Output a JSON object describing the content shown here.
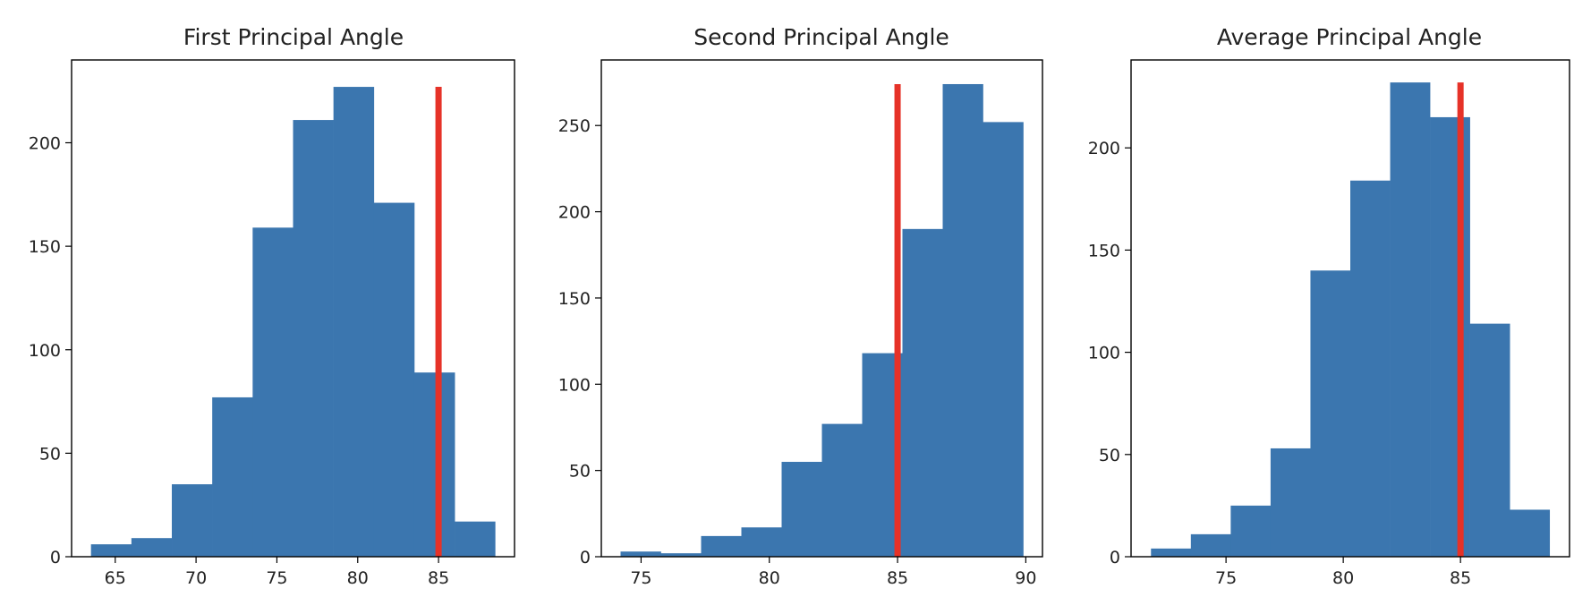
{
  "chart_data": [
    {
      "type": "bar",
      "title": "First Principal Angle",
      "xlabel": "",
      "ylabel": "",
      "bins": [
        {
          "x0": 63.5,
          "x1": 66.0,
          "count": 6
        },
        {
          "x0": 66.0,
          "x1": 68.5,
          "count": 9
        },
        {
          "x0": 68.5,
          "x1": 71.0,
          "count": 35
        },
        {
          "x0": 71.0,
          "x1": 73.5,
          "count": 77
        },
        {
          "x0": 73.5,
          "x1": 76.0,
          "count": 159
        },
        {
          "x0": 76.0,
          "x1": 78.5,
          "count": 211
        },
        {
          "x0": 78.5,
          "x1": 81.0,
          "count": 227
        },
        {
          "x0": 81.0,
          "x1": 83.5,
          "count": 171
        },
        {
          "x0": 83.5,
          "x1": 86.0,
          "count": 89
        },
        {
          "x0": 86.0,
          "x1": 88.5,
          "count": 17
        }
      ],
      "reference_line": {
        "x": 85,
        "ymax": 227
      },
      "xlim": [
        62.3,
        89.7
      ],
      "ylim": [
        0,
        240
      ],
      "xticks": [
        65,
        70,
        75,
        80,
        85
      ],
      "xtick_labels": [
        "65",
        "70",
        "75",
        "80",
        "85"
      ],
      "yticks": [
        0,
        50,
        100,
        150,
        200
      ],
      "ytick_labels": [
        "0",
        "50",
        "100",
        "150",
        "200"
      ],
      "grid": false
    },
    {
      "type": "bar",
      "title": "Second Principal Angle",
      "xlabel": "",
      "ylabel": "",
      "bins": [
        {
          "x0": 74.2,
          "x1": 75.77,
          "count": 3
        },
        {
          "x0": 75.77,
          "x1": 77.34,
          "count": 2
        },
        {
          "x0": 77.34,
          "x1": 78.91,
          "count": 12
        },
        {
          "x0": 78.91,
          "x1": 80.48,
          "count": 17
        },
        {
          "x0": 80.48,
          "x1": 82.05,
          "count": 55
        },
        {
          "x0": 82.05,
          "x1": 83.62,
          "count": 77
        },
        {
          "x0": 83.62,
          "x1": 85.19,
          "count": 118
        },
        {
          "x0": 85.19,
          "x1": 86.76,
          "count": 190
        },
        {
          "x0": 86.76,
          "x1": 88.33,
          "count": 274
        },
        {
          "x0": 88.33,
          "x1": 89.9,
          "count": 252
        }
      ],
      "reference_line": {
        "x": 85,
        "ymax": 274
      },
      "xlim": [
        73.45,
        90.65
      ],
      "ylim": [
        0,
        288
      ],
      "xticks": [
        75,
        80,
        85,
        90
      ],
      "xtick_labels": [
        "75",
        "80",
        "85",
        "90"
      ],
      "yticks": [
        0,
        50,
        100,
        150,
        200,
        250
      ],
      "ytick_labels": [
        "0",
        "50",
        "100",
        "150",
        "200",
        "250"
      ],
      "grid": false
    },
    {
      "type": "bar",
      "title": "Average Principal Angle",
      "xlabel": "",
      "ylabel": "",
      "bins": [
        {
          "x0": 71.8,
          "x1": 73.5,
          "count": 4
        },
        {
          "x0": 73.5,
          "x1": 75.2,
          "count": 11
        },
        {
          "x0": 75.2,
          "x1": 76.9,
          "count": 25
        },
        {
          "x0": 76.9,
          "x1": 78.6,
          "count": 53
        },
        {
          "x0": 78.6,
          "x1": 80.3,
          "count": 140
        },
        {
          "x0": 80.3,
          "x1": 82.0,
          "count": 184
        },
        {
          "x0": 82.0,
          "x1": 83.7,
          "count": 232
        },
        {
          "x0": 83.7,
          "x1": 85.4,
          "count": 215
        },
        {
          "x0": 85.4,
          "x1": 87.1,
          "count": 114
        },
        {
          "x0": 87.1,
          "x1": 88.8,
          "count": 23
        }
      ],
      "reference_line": {
        "x": 85,
        "ymax": 232
      },
      "xlim": [
        70.95,
        89.65
      ],
      "ylim": [
        0,
        243
      ],
      "xticks": [
        75,
        80,
        85
      ],
      "xtick_labels": [
        "75",
        "80",
        "85"
      ],
      "yticks": [
        0,
        50,
        100,
        150,
        200
      ],
      "ytick_labels": [
        "0",
        "50",
        "100",
        "150",
        "200"
      ],
      "grid": false
    }
  ],
  "colors": {
    "bar": "#3b76af",
    "reference_line": "#e63228",
    "axes": "#000000",
    "text": "#222222",
    "background": "#ffffff"
  }
}
